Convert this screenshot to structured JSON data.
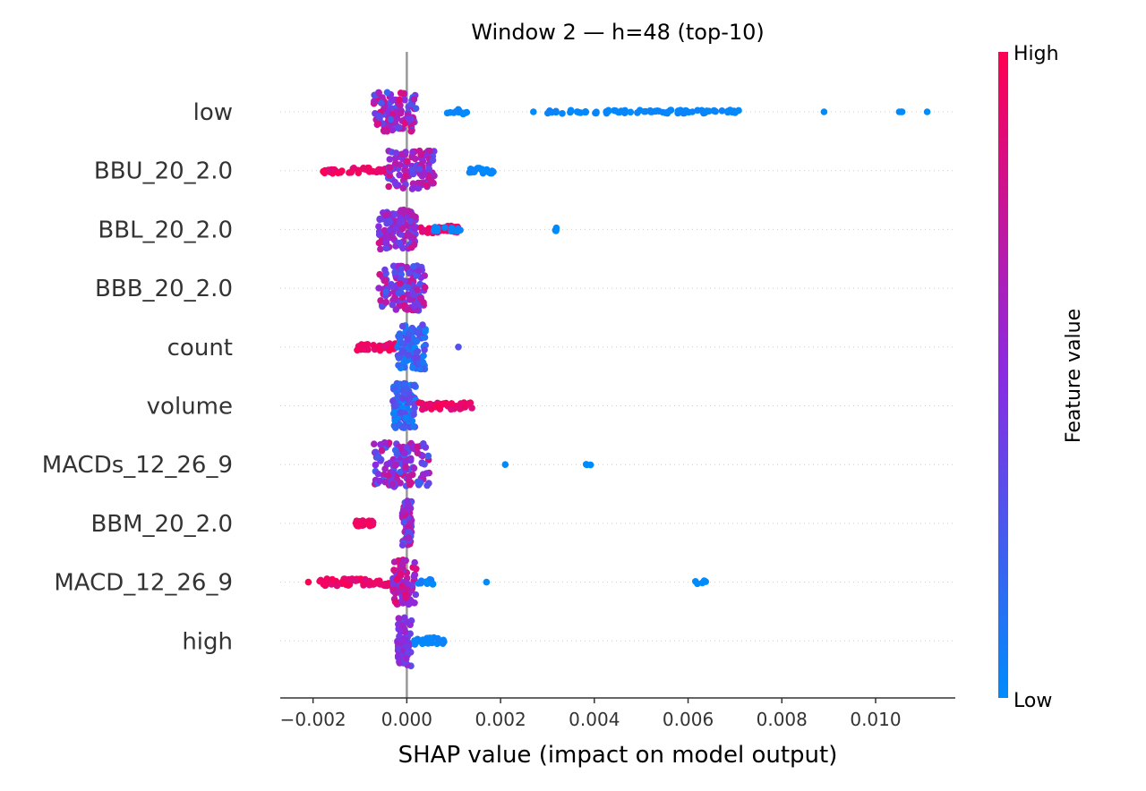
{
  "chart_data": {
    "type": "scatter",
    "subtype": "shap-beeswarm",
    "title": "Window 2 — h=48 (top-10)",
    "xlabel": "SHAP value (impact on model output)",
    "ylabel": "",
    "xlim": [
      -0.0027,
      0.0117
    ],
    "xticks": [
      -0.002,
      0.0,
      0.002,
      0.004,
      0.006,
      0.008,
      0.01
    ],
    "xtick_labels": [
      "−0.002",
      "0.000",
      "0.002",
      "0.004",
      "0.006",
      "0.008",
      "0.010"
    ],
    "grid": false,
    "features": [
      "low",
      "BBU_20_2.0",
      "BBL_20_2.0",
      "BBB_20_2.0",
      "count",
      "volume",
      "MACDs_12_26_9",
      "BBM_20_2.0",
      "MACD_12_26_9",
      "high"
    ],
    "colorbar": {
      "label": "Feature value",
      "high_label": "High",
      "low_label": "Low",
      "high_color": "#ff0052",
      "mid_color": "#8a2be2",
      "low_color": "#008bfb"
    },
    "series": [
      {
        "feature": "low",
        "clusters": [
          {
            "x": [
              -0.0007,
              0.0002
            ],
            "f": [
              0.2,
              0.9
            ],
            "spread": 22,
            "n": 110
          },
          {
            "x": [
              0.0008,
              0.0013
            ],
            "f": [
              0.0,
              0.05
            ],
            "spread": 3,
            "n": 12
          },
          {
            "x": [
              0.0027,
              0.0027
            ],
            "f": [
              0.0,
              0.0
            ],
            "spread": 0,
            "n": 1
          },
          {
            "x": [
              0.003,
              0.0071
            ],
            "f": [
              0.0,
              0.05
            ],
            "spread": 2,
            "n": 80
          },
          {
            "x": [
              0.0089,
              0.0089
            ],
            "f": [
              0.0,
              0.0
            ],
            "spread": 0,
            "n": 1
          },
          {
            "x": [
              0.0105,
              0.0106
            ],
            "f": [
              0.0,
              0.0
            ],
            "spread": 0,
            "n": 3
          },
          {
            "x": [
              0.0111,
              0.0111
            ],
            "f": [
              0.0,
              0.0
            ],
            "spread": 0,
            "n": 1
          }
        ]
      },
      {
        "feature": "BBU_20_2.0",
        "clusters": [
          {
            "x": [
              -0.0018,
              -0.0004
            ],
            "f": [
              0.85,
              1.0
            ],
            "spread": 3,
            "n": 45
          },
          {
            "x": [
              -0.0004,
              0.0006
            ],
            "f": [
              0.3,
              0.85
            ],
            "spread": 22,
            "n": 110
          },
          {
            "x": [
              0.0013,
              0.0019
            ],
            "f": [
              0.0,
              0.05
            ],
            "spread": 3,
            "n": 25
          }
        ]
      },
      {
        "feature": "BBL_20_2.0",
        "clusters": [
          {
            "x": [
              -0.0006,
              0.0002
            ],
            "f": [
              0.3,
              0.8
            ],
            "spread": 22,
            "n": 110
          },
          {
            "x": [
              0.0003,
              0.0011
            ],
            "f": [
              0.8,
              1.0
            ],
            "spread": 4,
            "n": 40
          },
          {
            "x": [
              0.0005,
              0.0012
            ],
            "f": [
              0.0,
              0.05
            ],
            "spread": 3,
            "n": 12
          },
          {
            "x": [
              0.0031,
              0.0032
            ],
            "f": [
              0.0,
              0.0
            ],
            "spread": 2,
            "n": 4
          }
        ]
      },
      {
        "feature": "BBB_20_2.0",
        "clusters": [
          {
            "x": [
              -0.0006,
              0.0004
            ],
            "f": [
              0.2,
              0.85
            ],
            "spread": 25,
            "n": 120
          }
        ]
      },
      {
        "feature": "count",
        "clusters": [
          {
            "x": [
              -0.0011,
              -0.0002
            ],
            "f": [
              0.85,
              1.0
            ],
            "spread": 4,
            "n": 30
          },
          {
            "x": [
              -0.0002,
              0.0004
            ],
            "f": [
              0.0,
              0.4
            ],
            "spread": 25,
            "n": 100
          },
          {
            "x": [
              0.0011,
              0.0011
            ],
            "f": [
              0.3,
              0.3
            ],
            "spread": 0,
            "n": 1
          }
        ]
      },
      {
        "feature": "volume",
        "clusters": [
          {
            "x": [
              -0.0003,
              0.0002
            ],
            "f": [
              0.0,
              0.4
            ],
            "spread": 25,
            "n": 100
          },
          {
            "x": [
              0.0002,
              0.0014
            ],
            "f": [
              0.85,
              1.0
            ],
            "spread": 4,
            "n": 40
          }
        ]
      },
      {
        "feature": "MACDs_12_26_9",
        "clusters": [
          {
            "x": [
              -0.0007,
              0.0005
            ],
            "f": [
              0.2,
              0.85
            ],
            "spread": 25,
            "n": 120
          },
          {
            "x": [
              0.0021,
              0.0021
            ],
            "f": [
              0.0,
              0.0
            ],
            "spread": 0,
            "n": 1
          },
          {
            "x": [
              0.0038,
              0.004
            ],
            "f": [
              0.0,
              0.0
            ],
            "spread": 1,
            "n": 3
          }
        ]
      },
      {
        "feature": "BBM_20_2.0",
        "clusters": [
          {
            "x": [
              -0.0011,
              -0.0007
            ],
            "f": [
              0.9,
              1.0
            ],
            "spread": 3,
            "n": 25
          },
          {
            "x": [
              -0.0001,
              0.0001
            ],
            "f": [
              0.2,
              0.8
            ],
            "spread": 25,
            "n": 80
          }
        ]
      },
      {
        "feature": "MACD_12_26_9",
        "clusters": [
          {
            "x": [
              -0.0021,
              -0.0021
            ],
            "f": [
              1.0,
              1.0
            ],
            "spread": 0,
            "n": 1
          },
          {
            "x": [
              -0.0019,
              -0.0003
            ],
            "f": [
              0.85,
              1.0
            ],
            "spread": 4,
            "n": 60
          },
          {
            "x": [
              -0.0003,
              0.0002
            ],
            "f": [
              0.4,
              0.9
            ],
            "spread": 25,
            "n": 90
          },
          {
            "x": [
              0.0002,
              0.0006
            ],
            "f": [
              0.0,
              0.1
            ],
            "spread": 3,
            "n": 12
          },
          {
            "x": [
              0.0017,
              0.0017
            ],
            "f": [
              0.0,
              0.0
            ],
            "spread": 0,
            "n": 1
          },
          {
            "x": [
              0.0061,
              0.0064
            ],
            "f": [
              0.0,
              0.0
            ],
            "spread": 2,
            "n": 5
          }
        ]
      },
      {
        "feature": "high",
        "clusters": [
          {
            "x": [
              -0.0002,
              0.0001
            ],
            "f": [
              0.3,
              0.6
            ],
            "spread": 28,
            "n": 70
          },
          {
            "x": [
              0.0001,
              0.0008
            ],
            "f": [
              0.0,
              0.05
            ],
            "spread": 4,
            "n": 30
          }
        ]
      }
    ]
  }
}
